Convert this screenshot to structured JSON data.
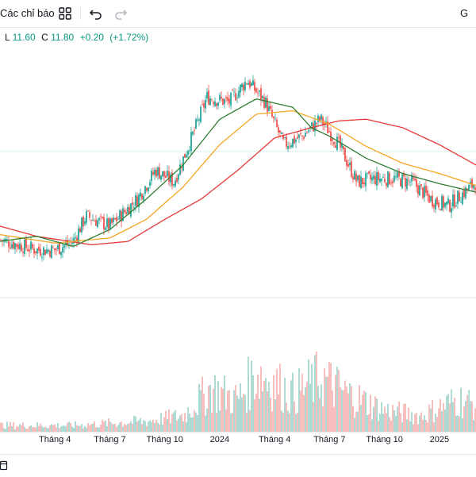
{
  "toolbar": {
    "indicators_label": "Các chỉ báo",
    "right_label": "G"
  },
  "legend": {
    "low_key": "L",
    "low_value": "11.60",
    "close_key": "C",
    "close_value": "11.80",
    "change": "+0.20",
    "change_pct": "(+1.72%)"
  },
  "colors": {
    "up": "#26a69a",
    "down": "#ef5350",
    "vol_up": "#a5d6cf",
    "vol_down": "#f5b7b6",
    "ma_short": "#2e7d32",
    "ma_mid": "#f5a623",
    "ma_long": "#e53935"
  },
  "chart_data": {
    "type": "candlestick",
    "x_tick_labels": [
      "Tháng 4",
      "Tháng 7",
      "Tháng 10",
      "2024",
      "Tháng 4",
      "Tháng 7",
      "Tháng 10",
      "2025"
    ],
    "x_tick_months": [
      3,
      6,
      9,
      12,
      15,
      18,
      21,
      24
    ],
    "x_range_months": [
      0,
      26
    ],
    "price_range": [
      5.5,
      20
    ],
    "price_path": [
      {
        "m": 0,
        "p": 8.4
      },
      {
        "m": 1,
        "p": 8.1
      },
      {
        "m": 2,
        "p": 7.8
      },
      {
        "m": 3,
        "p": 7.8
      },
      {
        "m": 4,
        "p": 8.3
      },
      {
        "m": 4.7,
        "p": 9.8
      },
      {
        "m": 6,
        "p": 9.2
      },
      {
        "m": 7.5,
        "p": 10.8
      },
      {
        "m": 8.5,
        "p": 12.5
      },
      {
        "m": 9.5,
        "p": 11.8
      },
      {
        "m": 10.5,
        "p": 14.5
      },
      {
        "m": 11.3,
        "p": 16.8
      },
      {
        "m": 12.5,
        "p": 16.5
      },
      {
        "m": 13.5,
        "p": 17.8
      },
      {
        "m": 14.5,
        "p": 16.5
      },
      {
        "m": 15.5,
        "p": 14.0
      },
      {
        "m": 16.5,
        "p": 14.5
      },
      {
        "m": 17.5,
        "p": 15.5
      },
      {
        "m": 18.5,
        "p": 14.0
      },
      {
        "m": 19.5,
        "p": 11.8
      },
      {
        "m": 20.5,
        "p": 12.0
      },
      {
        "m": 21.5,
        "p": 12.0
      },
      {
        "m": 22.5,
        "p": 11.8
      },
      {
        "m": 23.5,
        "p": 10.8
      },
      {
        "m": 24.5,
        "p": 10.4
      },
      {
        "m": 26,
        "p": 11.8
      }
    ],
    "ma_short_path": [
      {
        "m": 0,
        "p": 8.3
      },
      {
        "m": 2,
        "p": 8.6
      },
      {
        "m": 4,
        "p": 8.0
      },
      {
        "m": 6,
        "p": 9.0
      },
      {
        "m": 8,
        "p": 10.8
      },
      {
        "m": 10,
        "p": 12.8
      },
      {
        "m": 12,
        "p": 15.5
      },
      {
        "m": 14,
        "p": 16.7
      },
      {
        "m": 16,
        "p": 16.2
      },
      {
        "m": 17,
        "p": 15.0
      },
      {
        "m": 18,
        "p": 14.5
      },
      {
        "m": 20,
        "p": 13.2
      },
      {
        "m": 22,
        "p": 12.3
      },
      {
        "m": 24,
        "p": 11.7
      },
      {
        "m": 26,
        "p": 11.2
      }
    ],
    "ma_mid_path": [
      {
        "m": 0,
        "p": 8.7
      },
      {
        "m": 3,
        "p": 8.2
      },
      {
        "m": 6,
        "p": 8.5
      },
      {
        "m": 8,
        "p": 9.6
      },
      {
        "m": 10,
        "p": 11.5
      },
      {
        "m": 12,
        "p": 14.0
      },
      {
        "m": 14,
        "p": 15.8
      },
      {
        "m": 16,
        "p": 16.0
      },
      {
        "m": 18,
        "p": 15.2
      },
      {
        "m": 20,
        "p": 13.9
      },
      {
        "m": 22,
        "p": 12.9
      },
      {
        "m": 24,
        "p": 12.3
      },
      {
        "m": 26,
        "p": 11.6
      }
    ],
    "ma_long_path": [
      {
        "m": 0,
        "p": 9.2
      },
      {
        "m": 2,
        "p": 8.6
      },
      {
        "m": 5,
        "p": 8.1
      },
      {
        "m": 7,
        "p": 8.3
      },
      {
        "m": 9,
        "p": 9.6
      },
      {
        "m": 11,
        "p": 10.8
      },
      {
        "m": 13,
        "p": 12.5
      },
      {
        "m": 15,
        "p": 14.4
      },
      {
        "m": 17,
        "p": 15.0
      },
      {
        "m": 18.5,
        "p": 15.4
      },
      {
        "m": 20,
        "p": 15.5
      },
      {
        "m": 22,
        "p": 15.0
      },
      {
        "m": 24,
        "p": 14.0
      },
      {
        "m": 26,
        "p": 12.8
      }
    ],
    "volume_path": [
      {
        "m": 0,
        "v": 0.06
      },
      {
        "m": 4,
        "v": 0.06
      },
      {
        "m": 8,
        "v": 0.1
      },
      {
        "m": 10,
        "v": 0.15
      },
      {
        "m": 11.5,
        "v": 0.4
      },
      {
        "m": 13,
        "v": 0.3
      },
      {
        "m": 14,
        "v": 0.55
      },
      {
        "m": 15,
        "v": 0.45
      },
      {
        "m": 16,
        "v": 0.35
      },
      {
        "m": 17.5,
        "v": 0.5
      },
      {
        "m": 19,
        "v": 0.35
      },
      {
        "m": 21,
        "v": 0.2
      },
      {
        "m": 23,
        "v": 0.15
      },
      {
        "m": 25,
        "v": 0.3
      },
      {
        "m": 26,
        "v": 0.25
      }
    ],
    "y_gridline": 13.6
  }
}
